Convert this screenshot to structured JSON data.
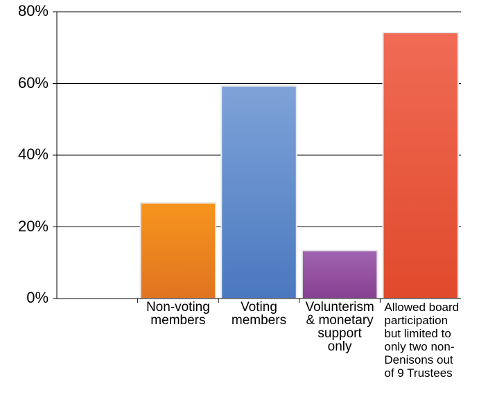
{
  "chart_data": {
    "type": "bar",
    "categories": [
      "Non-voting\nmembers",
      "Voting\nmembers",
      "Volunterism\n& monetary\nsupport\nonly",
      "Allowed board\nparticipation\nbut limited to\nonly two non-\nDenisons out\nof 9 Trustees"
    ],
    "values": [
      26.7,
      59.3,
      13.4,
      74.2
    ],
    "colors": [
      [
        "#f7941d",
        "#e07420"
      ],
      [
        "#7ea3d8",
        "#4a78bf"
      ],
      [
        "#a064b0",
        "#874091"
      ],
      [
        "#f06b55",
        "#e04a2c"
      ]
    ],
    "y_ticks": [
      "0%",
      "20%",
      "40%",
      "60%",
      "80%"
    ],
    "ylim": [
      0,
      80
    ],
    "grid": true,
    "title": "",
    "xlabel": "",
    "ylabel": ""
  }
}
